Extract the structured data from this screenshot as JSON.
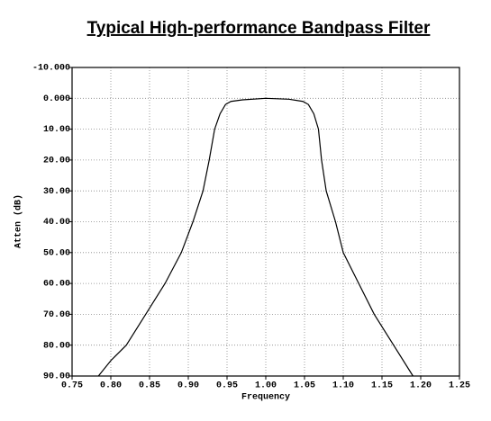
{
  "chart_data": {
    "type": "line",
    "title": "Typical High-performance Bandpass Filter",
    "x_label": "Frequency",
    "y_label": "Atten (dB)",
    "x": [
      0.784,
      0.8,
      0.82,
      0.845,
      0.87,
      0.891,
      0.906,
      0.919,
      0.927,
      0.934,
      0.941,
      0.948,
      0.955,
      0.97,
      1.0,
      1.03,
      1.048,
      1.055,
      1.062,
      1.068,
      1.072,
      1.078,
      1.09,
      1.1,
      1.12,
      1.14,
      1.165,
      1.19
    ],
    "series": [
      {
        "name": "Atten",
        "color": "#000000",
        "values": [
          90,
          85,
          80,
          70,
          60,
          50,
          40,
          30,
          20,
          10,
          5,
          2,
          1,
          0.5,
          0,
          0.3,
          1,
          2,
          5,
          10,
          20,
          30,
          40,
          50,
          60,
          70,
          80,
          90
        ]
      }
    ],
    "xlim": [
      0.75,
      1.25
    ],
    "xticks": [
      0.75,
      {
        "value": 0.8,
        "label": "0.80"
      },
      0.85,
      {
        "value": 0.9,
        "label": "0.90"
      },
      0.95,
      {
        "value": 1,
        "label": "1.00"
      },
      1.05,
      {
        "value": 1.1,
        "label": "1.10"
      },
      1.15,
      {
        "value": 1.2,
        "label": "1.20"
      },
      1.25
    ],
    "ylim": [
      -10,
      90
    ],
    "y_inverted": true,
    "yticks": [
      {
        "value": -10,
        "label": "-10.000"
      },
      {
        "value": 0,
        "label": "0.000"
      },
      {
        "value": 10,
        "label": "10.00"
      },
      {
        "value": 20,
        "label": "20.00"
      },
      {
        "value": 30,
        "label": "30.00"
      },
      {
        "value": 40,
        "label": "40.00"
      },
      {
        "value": 50,
        "label": "50.00"
      },
      {
        "value": 60,
        "label": "60.00"
      },
      {
        "value": 70,
        "label": "70.00"
      },
      {
        "value": 80,
        "label": "80.00"
      },
      {
        "value": 90,
        "label": "90.00"
      }
    ],
    "grid": true
  }
}
